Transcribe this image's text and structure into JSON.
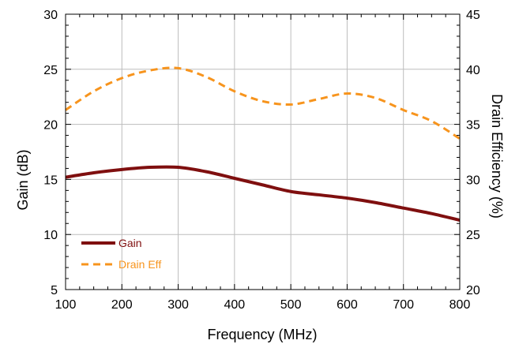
{
  "chart_data": {
    "type": "line",
    "title": "",
    "xlabel": "Frequency (MHz)",
    "ylabel": "Gain (dB)",
    "y2label": "Drain Efficiency (%)",
    "xlim": [
      100,
      800
    ],
    "ylim": [
      5,
      30
    ],
    "y2lim": [
      20,
      45
    ],
    "xticks": [
      "100",
      "200",
      "300",
      "400",
      "500",
      "600",
      "700",
      "800"
    ],
    "yticks": [
      "5",
      "10",
      "15",
      "20",
      "25",
      "30"
    ],
    "y2ticks": [
      "20",
      "25",
      "30",
      "35",
      "40",
      "45"
    ],
    "grid": true,
    "legend_position": "bottom-left",
    "series": [
      {
        "name": "Gain",
        "axis": "left",
        "color": "#7f0f0f",
        "style": "solid",
        "x": [
          100,
          150,
          200,
          250,
          300,
          350,
          400,
          450,
          500,
          550,
          600,
          650,
          700,
          750,
          800
        ],
        "y": [
          15.2,
          15.6,
          15.9,
          16.1,
          16.1,
          15.7,
          15.1,
          14.5,
          13.9,
          13.6,
          13.3,
          12.9,
          12.4,
          11.9,
          11.3
        ]
      },
      {
        "name": "Drain Eff",
        "axis": "right",
        "color": "#f7941d",
        "style": "dashed",
        "x": [
          100,
          150,
          200,
          250,
          300,
          350,
          400,
          450,
          500,
          550,
          600,
          650,
          700,
          750,
          800
        ],
        "y": [
          36.3,
          38.0,
          39.2,
          39.9,
          40.1,
          39.3,
          38.0,
          37.1,
          36.8,
          37.3,
          37.8,
          37.4,
          36.3,
          35.3,
          33.7
        ]
      }
    ]
  }
}
